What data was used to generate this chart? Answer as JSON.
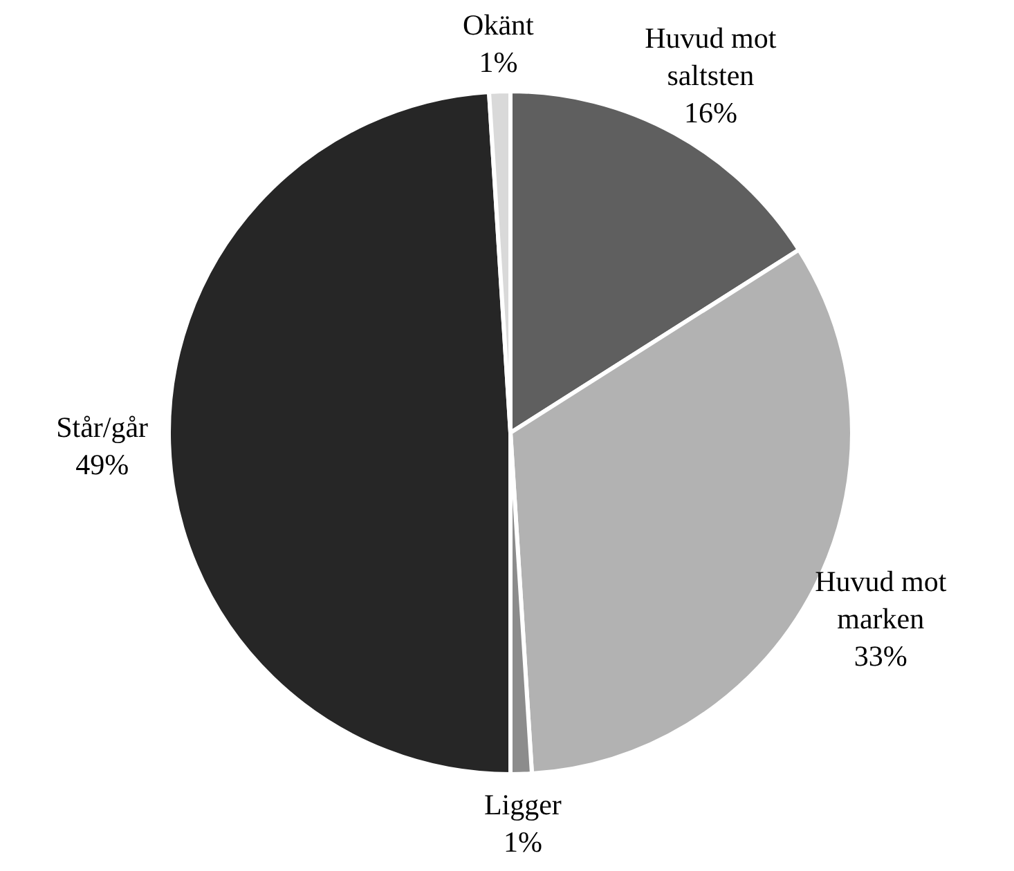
{
  "chart_data": {
    "type": "pie",
    "categories": [
      "Huvud mot saltsten",
      "Huvud mot marken",
      "Ligger",
      "Står/går",
      "Okänt"
    ],
    "values": [
      16,
      33,
      1,
      49,
      1
    ],
    "colors": [
      "#5f5f5f",
      "#b2b2b2",
      "#8c8c8c",
      "#262626",
      "#d9d9d9"
    ],
    "value_labels": [
      "16%",
      "33%",
      "1%",
      "49%",
      "1%"
    ]
  }
}
